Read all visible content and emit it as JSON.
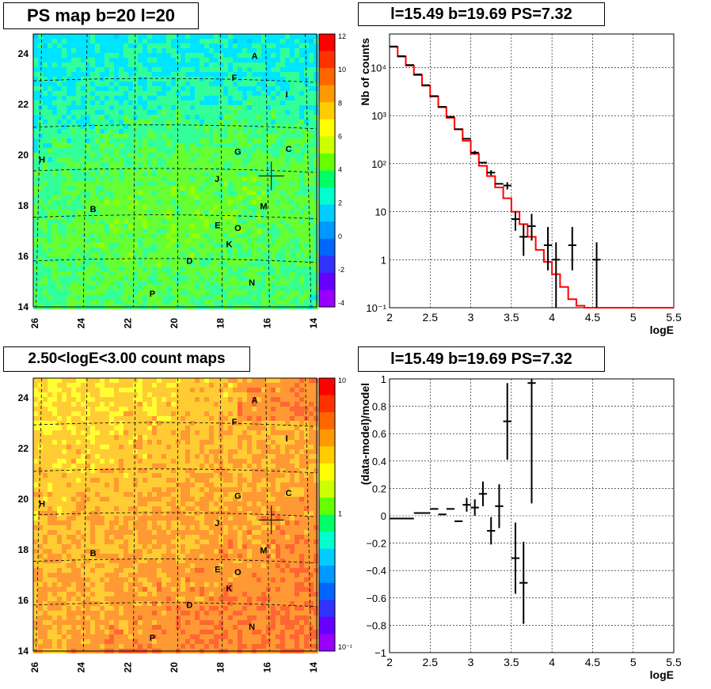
{
  "panels": {
    "ps_map": {
      "title": "PS map b=20 l=20",
      "x_ticks": [
        "26",
        "24",
        "22",
        "20",
        "18",
        "16",
        "14"
      ],
      "y_ticks": [
        "14",
        "16",
        "18",
        "20",
        "22",
        "24"
      ],
      "colorbar_ticks": [
        "12",
        "10",
        "8",
        "6",
        "4",
        "2",
        "0",
        "-2",
        "-4"
      ]
    },
    "count_map": {
      "title": "2.50<logE<3.00 count maps",
      "x_ticks": [
        "26",
        "24",
        "22",
        "20",
        "18",
        "16",
        "14"
      ],
      "y_ticks": [
        "14",
        "16",
        "18",
        "20",
        "22",
        "24"
      ],
      "colorbar_ticks": [
        "10",
        "1",
        "10⁻¹"
      ]
    },
    "source_labels": [
      "A",
      "F",
      "I",
      "G",
      "C",
      "H",
      "J",
      "B",
      "M",
      "E",
      "O",
      "K",
      "D",
      "N",
      "P"
    ],
    "spectrum_title": "l=15.49 b=19.69 PS=7.32",
    "residual_title": "l=15.49 b=19.69 PS=7.32"
  },
  "chart_data": [
    {
      "type": "line",
      "title": "l=15.49 b=19.69 PS=7.32",
      "xlabel": "logE",
      "ylabel": "Nb of counts",
      "xlim": [
        2,
        5.5
      ],
      "ylim": [
        0.1,
        50000
      ],
      "yscale": "log",
      "grid": true,
      "x_ticks": [
        "2",
        "2.5",
        "3",
        "3.5",
        "4",
        "4.5",
        "5",
        "5.5"
      ],
      "y_ticks": [
        "10⁻¹",
        "1",
        "10",
        "10²",
        "10³",
        "10⁴"
      ],
      "series": [
        {
          "type": "step",
          "color": "#ff0000",
          "x": [
            2.0,
            2.1,
            2.2,
            2.3,
            2.4,
            2.5,
            2.6,
            2.7,
            2.8,
            2.9,
            3.0,
            3.1,
            3.2,
            3.3,
            3.4,
            3.5,
            3.6,
            3.7,
            3.8,
            3.9,
            4.0,
            4.1,
            4.2,
            4.3,
            4.4,
            4.5,
            4.6,
            4.7,
            4.8,
            4.9,
            5.0,
            5.1,
            5.2,
            5.3,
            5.4
          ],
          "values": [
            27000,
            17000,
            11000,
            7000,
            4200,
            2500,
            1500,
            900,
            520,
            300,
            160,
            90,
            55,
            32,
            19,
            10,
            5.5,
            3,
            1.6,
            0.9,
            0.5,
            0.27,
            0.15,
            0.11,
            0.1,
            0.1,
            0.1,
            0.1,
            0.1,
            0.1,
            0.1,
            0.1,
            0.1,
            0.1,
            0.1
          ]
        },
        {
          "type": "errorbar",
          "color": "#000000",
          "x": [
            2.05,
            2.15,
            2.25,
            2.35,
            2.45,
            2.55,
            2.65,
            2.75,
            2.85,
            2.95,
            3.05,
            3.15,
            3.25,
            3.35,
            3.45,
            3.55,
            3.65,
            3.75,
            3.95,
            4.05,
            4.25,
            4.55
          ],
          "values": [
            27500,
            17300,
            11300,
            7200,
            4300,
            2550,
            1520,
            940,
            520,
            330,
            170,
            105,
            65,
            38,
            35,
            7,
            3,
            5,
            2,
            1,
            2,
            1
          ],
          "err_low": [
            0,
            0,
            0,
            0,
            0,
            0,
            0,
            0,
            0,
            0,
            15,
            0,
            8,
            0,
            6,
            3,
            1.8,
            2.5,
            1.4,
            0.9,
            1.4,
            0.9
          ],
          "err_high": [
            0,
            0,
            0,
            0,
            0,
            0,
            0,
            0,
            0,
            0,
            15,
            0,
            8,
            0,
            6,
            3,
            2.5,
            4,
            2.8,
            1.3,
            2.8,
            1.3
          ]
        }
      ]
    },
    {
      "type": "scatter",
      "title": "l=15.49 b=19.69 PS=7.32",
      "xlabel": "logE",
      "ylabel": "(data-model)/model",
      "xlim": [
        2,
        5.5
      ],
      "ylim": [
        -1,
        1
      ],
      "grid": true,
      "x_ticks": [
        "2",
        "2.5",
        "3",
        "3.5",
        "4",
        "4.5",
        "5",
        "5.5"
      ],
      "y_ticks": [
        "−1",
        "−0.8",
        "−0.6",
        "−0.4",
        "−0.2",
        "0",
        "0.2",
        "0.4",
        "0.6",
        "0.8",
        "1"
      ],
      "series": [
        {
          "type": "errorbar",
          "color": "#000000",
          "x": [
            2.15,
            2.35,
            2.45,
            2.55,
            2.65,
            2.75,
            2.85,
            2.95,
            3.05,
            3.15,
            3.25,
            3.35,
            3.45,
            3.55,
            3.65,
            3.75
          ],
          "values": [
            -0.02,
            0.02,
            0.02,
            0.05,
            0.01,
            0.05,
            -0.04,
            0.08,
            0.06,
            0.16,
            -0.11,
            0.07,
            0.69,
            -0.31,
            -0.49,
            0.97
          ],
          "err": [
            0,
            0,
            0,
            0,
            0,
            0,
            0,
            0.05,
            0.06,
            0.09,
            0.1,
            0.16,
            0.28,
            0.26,
            0.3,
            0.88
          ]
        }
      ]
    }
  ]
}
